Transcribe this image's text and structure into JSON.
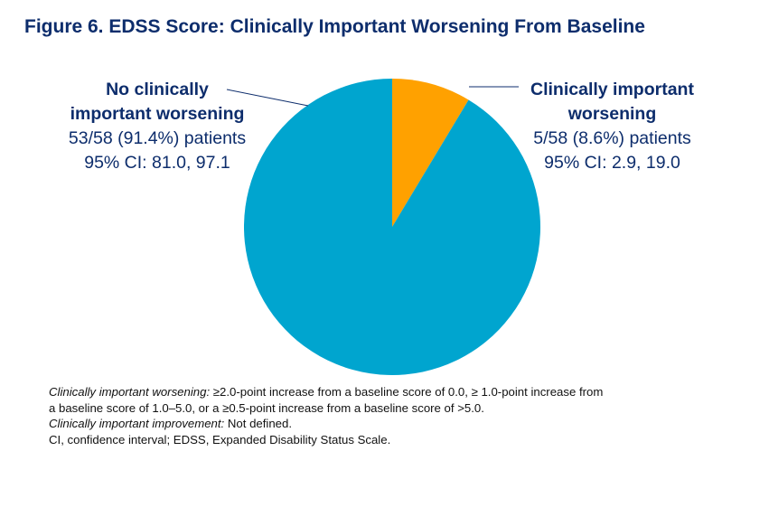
{
  "title": "Figure 6. EDSS Score: Clinically Important Worsening From Baseline",
  "chart_data": {
    "type": "pie",
    "slices": [
      {
        "label_line1": "Clinically important",
        "label_line2": "worsening",
        "value": 5,
        "total": 58,
        "percent": 8.6,
        "count_text": "5/58 (8.6%) patients",
        "ci_text": "95% CI: 2.9, 19.0",
        "color": "#ffa100"
      },
      {
        "label_line1": "No clinically",
        "label_line2": "important worsening",
        "value": 53,
        "total": 58,
        "percent": 91.4,
        "count_text": "53/58 (91.4%) patients",
        "ci_text": "95% CI: 81.0, 97.1",
        "color": "#00a5cf"
      }
    ],
    "start_angle": "12 o'clock",
    "direction": "clockwise"
  },
  "footnotes": {
    "line1_italic": "Clinically important worsening:",
    "line1_rest": " ≥2.0-point increase from a baseline score of 0.0, ≥ 1.0-point increase from",
    "line2": "a baseline score of 1.0–5.0, or a ≥0.5-point increase from a baseline score of >5.0.",
    "line3_italic": "Clinically important improvement:",
    "line3_rest": " Not defined.",
    "line4": "CI, confidence interval; EDSS, Expanded Disability Status Scale."
  }
}
